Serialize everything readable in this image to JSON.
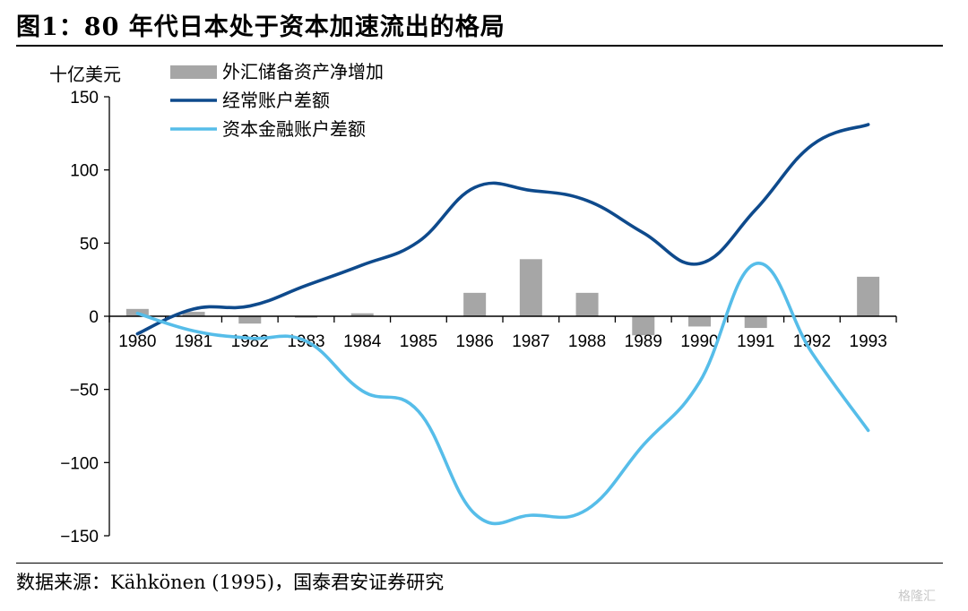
{
  "header": {
    "title": "图1：80 年代日本处于资本加速流出的格局"
  },
  "footer": {
    "source": "数据来源：Kähkönen (1995)，国泰君安证券研究",
    "watermark": "格隆汇"
  },
  "chart_data": {
    "type": "bar+line",
    "ylabel": "十亿美元",
    "ylim": [
      -150,
      150
    ],
    "yticks": [
      150,
      100,
      50,
      0,
      -50,
      -100,
      -150
    ],
    "categories": [
      "1980",
      "1981",
      "1982",
      "1983",
      "1984",
      "1985",
      "1986",
      "1987",
      "1988",
      "1989",
      "1990",
      "1991",
      "1992",
      "1993"
    ],
    "legend_position": "top-left",
    "grid": false,
    "series": [
      {
        "name": "外汇储备资产净增加",
        "type": "bar",
        "color": "#a6a6a6",
        "values": [
          5,
          3,
          -5,
          -1,
          2,
          0,
          16,
          39,
          16,
          -13,
          -7,
          -8,
          0,
          27
        ]
      },
      {
        "name": "经常账户差额",
        "type": "line",
        "color": "#0e4a8c",
        "values": [
          -12,
          5,
          7,
          21,
          35,
          51,
          88,
          86,
          79,
          57,
          36,
          73,
          117,
          131
        ]
      },
      {
        "name": "资本金融账户差额",
        "type": "line",
        "color": "#56bde9",
        "values": [
          2,
          -10,
          -15,
          -17,
          -51,
          -65,
          -135,
          -136,
          -132,
          -88,
          -45,
          36,
          -25,
          -78
        ]
      }
    ]
  }
}
